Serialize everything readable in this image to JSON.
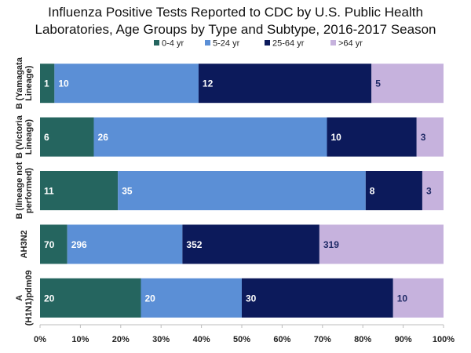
{
  "chart_data": {
    "type": "bar",
    "orientation": "horizontal",
    "stacked": "percent",
    "title_lines": [
      "Influenza Positive Tests Reported to CDC by U.S. Public Health",
      "Laboratories, Age Groups by Type and Subtype, 2016-2017 Season"
    ],
    "categories": [
      [
        "B (Yamagata",
        "Lineage)"
      ],
      [
        "B (Victoria",
        "Lineage)"
      ],
      [
        "B (lineage not",
        "performed)"
      ],
      [
        "AH3N2"
      ],
      [
        "A",
        "(H1N1)pdm09"
      ]
    ],
    "series": [
      {
        "name": "0-4 yr",
        "color": "#25655f",
        "label_color": "#ffffff",
        "values": [
          1,
          6,
          11,
          70,
          20
        ]
      },
      {
        "name": "5-24 yr",
        "color": "#5b8fd6",
        "label_color": "#ffffff",
        "values": [
          10,
          26,
          35,
          296,
          20
        ]
      },
      {
        "name": "25-64 yr",
        "color": "#0c1a5b",
        "label_color": "#ffffff",
        "values": [
          12,
          10,
          8,
          352,
          30
        ]
      },
      {
        "name": ">64 yr",
        "color": "#c6b2dd",
        "label_color": "#1f2a66",
        "values": [
          5,
          3,
          3,
          319,
          10
        ]
      }
    ],
    "x_ticks": [
      "0%",
      "10%",
      "20%",
      "30%",
      "40%",
      "50%",
      "60%",
      "70%",
      "80%",
      "90%",
      "100%"
    ],
    "xlim": [
      0,
      100
    ],
    "legend": "top",
    "grid": false
  }
}
